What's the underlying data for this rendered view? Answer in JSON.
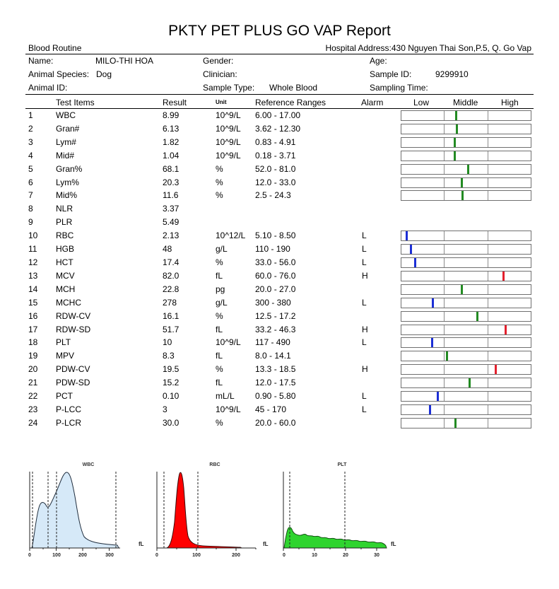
{
  "report": {
    "title": "PKTY PET PLUS GO VAP Report",
    "section": "Blood Routine",
    "hospital_address_label": "Hospital Address:",
    "hospital_address": "430 Nguyen Thai Son,P.5, Q. Go Vap"
  },
  "patient": {
    "name_label": "Name:",
    "name": "MILO-THI HOA",
    "gender_label": "Gender:",
    "age_label": "Age:",
    "species_label": "Animal Species:",
    "species": "Dog",
    "clinician_label": "Clinician:",
    "sample_id_label": "Sample ID:",
    "sample_id": "9299910",
    "animal_id_label": "Animal ID:",
    "sample_type_label": "Sample Type:",
    "sample_type": "Whole Blood",
    "sampling_time_label": "Sampling Time:"
  },
  "columns": {
    "test_items": "Test Items",
    "result": "Result",
    "unit": "Unit",
    "reference_ranges": "Reference Ranges",
    "alarm": "Alarm",
    "low": "Low",
    "middle": "Middle",
    "high": "High"
  },
  "results": [
    {
      "no": "1",
      "item": "WBC",
      "result": "8.99",
      "unit": "10^9/L",
      "range": "6.00 - 17.00"
    },
    {
      "no": "2",
      "item": "Gran#",
      "result": "6.13",
      "unit": "10^9/L",
      "range": "3.62 - 12.30"
    },
    {
      "no": "3",
      "item": "Lym#",
      "result": "1.82",
      "unit": "10^9/L",
      "range": "0.83 - 4.91"
    },
    {
      "no": "4",
      "item": "Mid#",
      "result": "1.04",
      "unit": "10^9/L",
      "range": "0.18 - 3.71"
    },
    {
      "no": "5",
      "item": "Gran%",
      "result": "68.1",
      "unit": "%",
      "range": "52.0 - 81.0"
    },
    {
      "no": "6",
      "item": "Lym%",
      "result": "20.3",
      "unit": "%",
      "range": "12.0 - 33.0"
    },
    {
      "no": "7",
      "item": "Mid%",
      "result": "11.6",
      "unit": "%",
      "range": "2.5 - 24.3"
    },
    {
      "no": "8",
      "item": "NLR",
      "result": "3.37"
    },
    {
      "no": "9",
      "item": "PLR",
      "result": "5.49"
    },
    {
      "no": "10",
      "item": "RBC",
      "result": "2.13",
      "unit": "10^12/L",
      "range": "5.10 - 8.50",
      "alarm": "L"
    },
    {
      "no": "11",
      "item": "HGB",
      "result": "48",
      "unit": "g/L",
      "range": "110 - 190",
      "alarm": "L"
    },
    {
      "no": "12",
      "item": "HCT",
      "result": "17.4",
      "unit": "%",
      "range": "33.0 - 56.0",
      "alarm": "L"
    },
    {
      "no": "13",
      "item": "MCV",
      "result": "82.0",
      "unit": "fL",
      "range": "60.0 - 76.0",
      "alarm": "H"
    },
    {
      "no": "14",
      "item": "MCH",
      "result": "22.8",
      "unit": "pg",
      "range": "20.0 - 27.0"
    },
    {
      "no": "15",
      "item": "MCHC",
      "result": "278",
      "unit": "g/L",
      "range": "300 - 380",
      "alarm": "L"
    },
    {
      "no": "16",
      "item": "RDW-CV",
      "result": "16.1",
      "unit": "%",
      "range": "12.5 - 17.2"
    },
    {
      "no": "17",
      "item": "RDW-SD",
      "result": "51.7",
      "unit": "fL",
      "range": "33.2 - 46.3",
      "alarm": "H"
    },
    {
      "no": "18",
      "item": "PLT",
      "result": "10",
      "unit": "10^9/L",
      "range": "117 - 490",
      "alarm": "L"
    },
    {
      "no": "19",
      "item": "MPV",
      "result": "8.3",
      "unit": "fL",
      "range": "8.0 - 14.1"
    },
    {
      "no": "20",
      "item": "PDW-CV",
      "result": "19.5",
      "unit": "%",
      "range": "13.3 - 18.5",
      "alarm": "H"
    },
    {
      "no": "21",
      "item": "PDW-SD",
      "result": "15.2",
      "unit": "fL",
      "range": "12.0 - 17.5"
    },
    {
      "no": "22",
      "item": "PCT",
      "result": "0.10",
      "unit": "mL/L",
      "range": "0.90 - 5.80",
      "alarm": "L"
    },
    {
      "no": "23",
      "item": "P-LCC",
      "result": "3",
      "unit": "10^9/L",
      "range": "45 - 170",
      "alarm": "L"
    },
    {
      "no": "24",
      "item": "P-LCR",
      "result": "30.0",
      "unit": "%",
      "range": "20.0 - 60.0"
    }
  ],
  "marker_colors": {
    "normal": "#238b23",
    "low": "#1c2fd6",
    "high": "#e3202d"
  },
  "histograms": [
    {
      "title": "WBC",
      "ticks": [
        "0",
        "100",
        "200",
        "300"
      ],
      "unit": "fL",
      "fill": "#d6e9f8"
    },
    {
      "title": "RBC",
      "ticks": [
        "0",
        "100",
        "200"
      ],
      "unit": "fL",
      "fill": "#ff0000"
    },
    {
      "title": "PLT",
      "ticks": [
        "0",
        "10",
        "20",
        "30"
      ],
      "unit": "fL",
      "fill": "#2fd42f"
    }
  ]
}
